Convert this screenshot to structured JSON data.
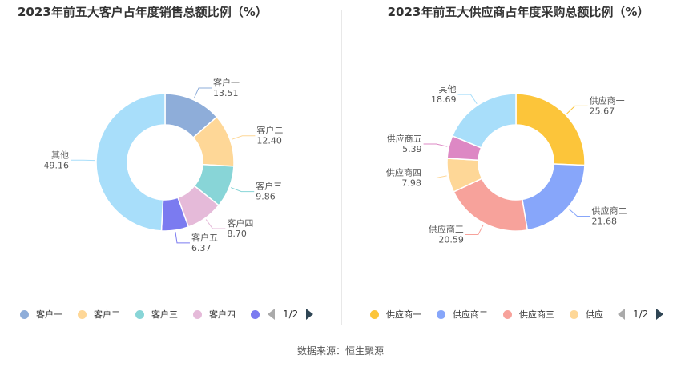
{
  "source_text": "数据来源：恒生聚源",
  "chart_data": [
    {
      "type": "pie",
      "title": "2023年前五大客户占年度销售总额比例（%）",
      "categories": [
        "客户一",
        "客户二",
        "客户三",
        "客户四",
        "客户五",
        "其他"
      ],
      "values": [
        13.51,
        12.4,
        9.86,
        8.7,
        6.37,
        49.16
      ],
      "value_labels": [
        "13.51",
        "12.40",
        "9.86",
        "8.70",
        "6.37",
        "49.16"
      ],
      "colors": [
        "#8eadd9",
        "#fed797",
        "#88d5d7",
        "#e5bad9",
        "#7b7bf0",
        "#a8defa"
      ],
      "legend": {
        "position": "bottom",
        "visible_items": [
          "客户一",
          "客户二",
          "客户三",
          "客户四",
          ""
        ],
        "page": "1/2"
      }
    },
    {
      "type": "pie",
      "title": "2023年前五大供应商占年度采购总额比例（%）",
      "categories": [
        "供应商一",
        "供应商二",
        "供应商三",
        "供应商四",
        "供应商五",
        "其他"
      ],
      "values": [
        25.67,
        21.68,
        20.59,
        7.98,
        5.39,
        18.69
      ],
      "value_labels": [
        "25.67",
        "21.68",
        "20.59",
        "7.98",
        "5.39",
        "18.69"
      ],
      "colors": [
        "#fcc53a",
        "#87a6fa",
        "#f7a29b",
        "#fed797",
        "#dd88c4",
        "#a8defa"
      ],
      "legend": {
        "position": "bottom",
        "visible_items": [
          "供应商一",
          "供应商二",
          "供应商三",
          "供应"
        ],
        "page": "1/2"
      }
    }
  ]
}
